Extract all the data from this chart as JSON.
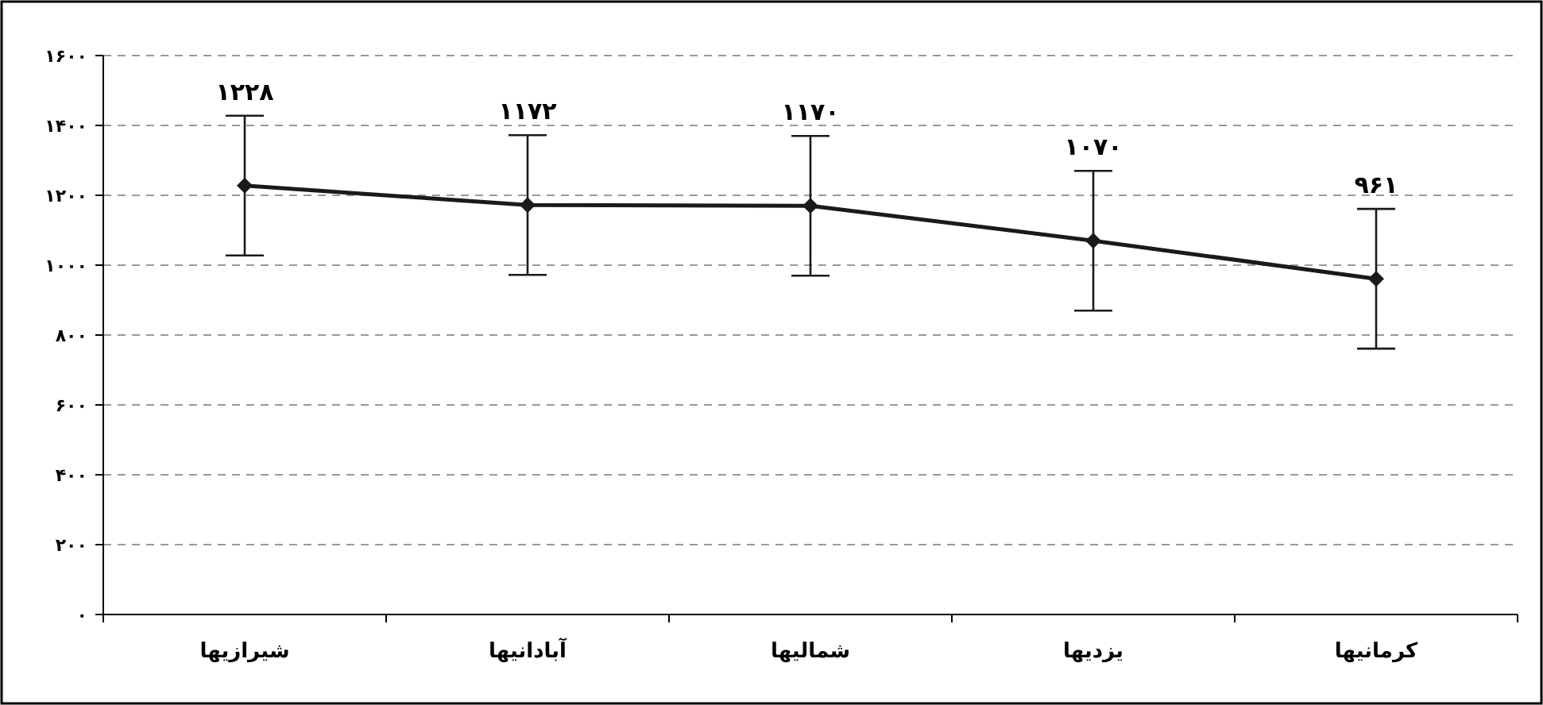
{
  "chart_data": {
    "type": "line",
    "categories": [
      "شیرازیها",
      "آبادانیها",
      "شمالیها",
      "یزدیها",
      "کرمانیها"
    ],
    "series": [
      {
        "color": "#1a1a1a",
        "values": [
          1228,
          1172,
          1170,
          1070,
          961
        ],
        "errors": [
          200,
          200,
          200,
          200,
          200
        ],
        "value_labels": [
          "۱۲۲۸",
          "۱۱۷۲",
          "۱۱۷۰",
          "۱۰۷۰",
          "۹۶۱"
        ]
      }
    ],
    "ylim": [
      0,
      1600
    ],
    "yticks": [
      {
        "value": 0,
        "label": "۰"
      },
      {
        "value": 200,
        "label": "۲۰۰"
      },
      {
        "value": 400,
        "label": "۴۰۰"
      },
      {
        "value": 600,
        "label": "۶۰۰"
      },
      {
        "value": 800,
        "label": "۸۰۰"
      },
      {
        "value": 1000,
        "label": "۱۰۰۰"
      },
      {
        "value": 1200,
        "label": "۱۲۰۰"
      },
      {
        "value": 1400,
        "label": "۱۴۰۰"
      },
      {
        "value": 1600,
        "label": "۱۶۰۰"
      }
    ],
    "grid": "y",
    "marker": "diamond",
    "line_style": "solid"
  }
}
